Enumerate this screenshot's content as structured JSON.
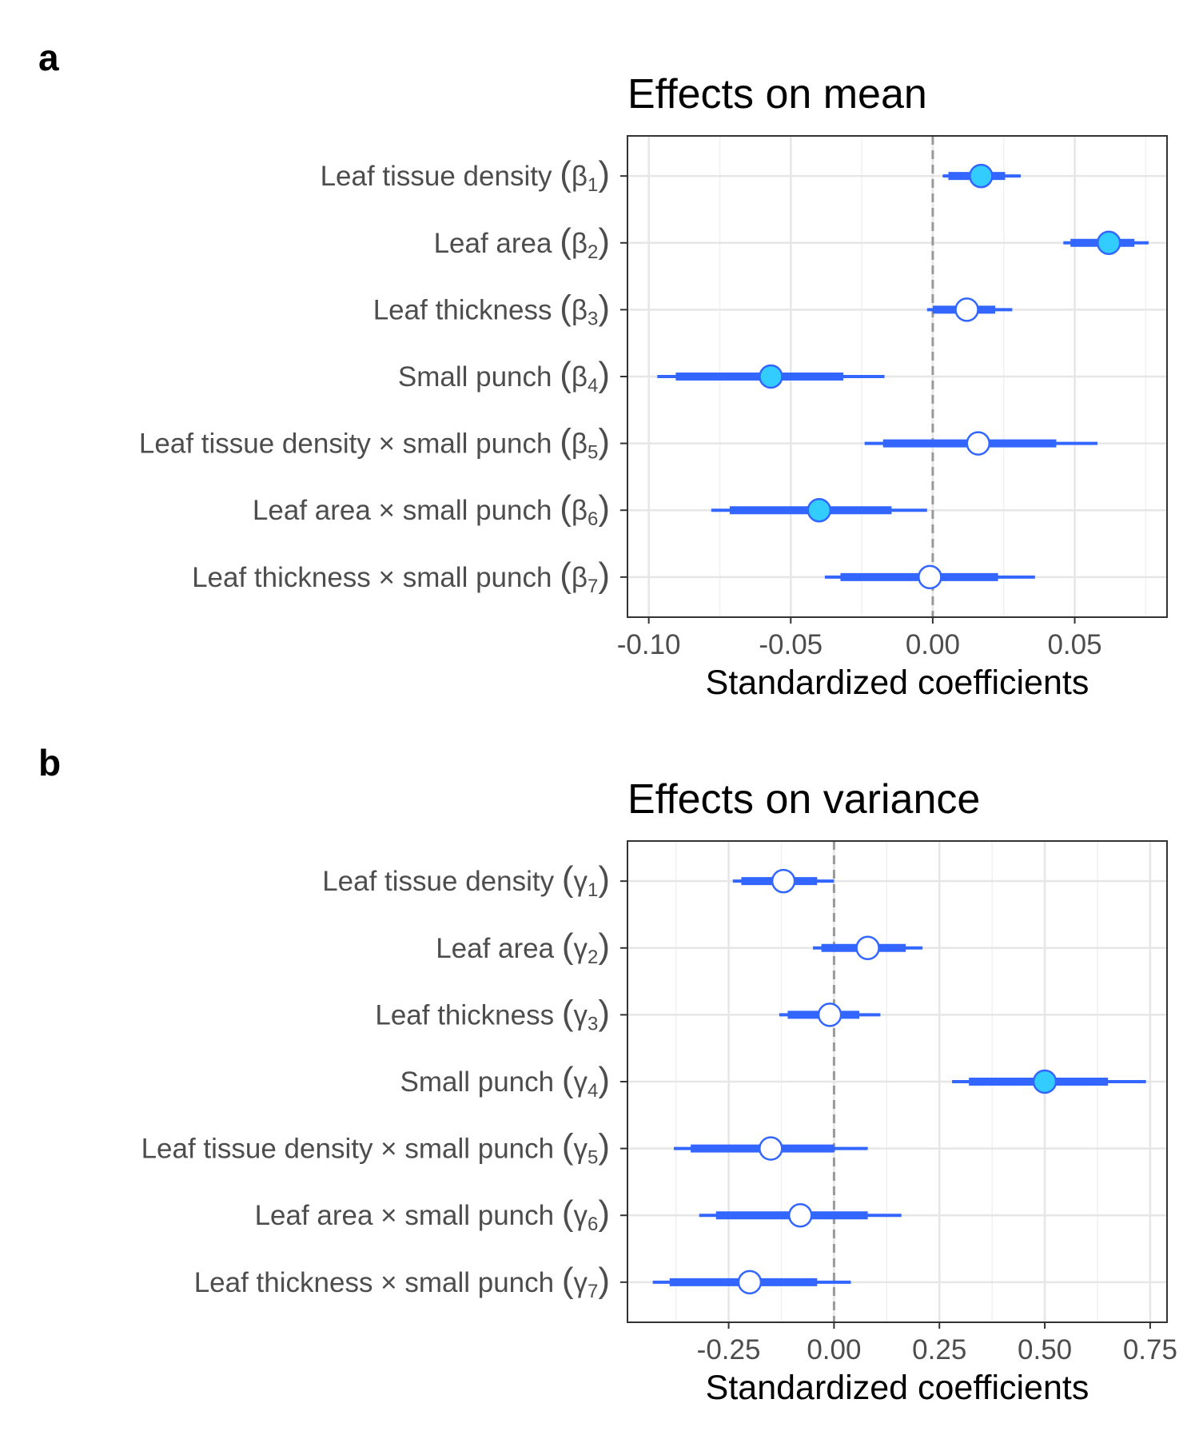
{
  "chart_data": [
    {
      "type": "scatter",
      "panel_letter": "a",
      "title": "Effects on mean",
      "xlabel": "Standardized coefficients",
      "ylabel": "",
      "xlim": [
        -0.1075,
        0.0825
      ],
      "xticks": [
        "-0.10",
        "-0.05",
        "0.00",
        "0.05"
      ],
      "xtick_values": [
        -0.1,
        -0.05,
        0.0,
        0.05
      ],
      "reference_line": 0,
      "grid": true,
      "colors": {
        "interval": "#3366ff",
        "significant_point": "#33ccff",
        "nonsignificant_point": "#ffffff",
        "reference_line": "#999999"
      },
      "rows": [
        {
          "label": "Leaf tissue density",
          "symbol": "β",
          "sub": "1",
          "estimate": 0.017,
          "inner": [
            0.0055,
            0.0255
          ],
          "outer": [
            0.0035,
            0.031
          ],
          "significant": true
        },
        {
          "label": "Leaf area",
          "symbol": "β",
          "sub": "2",
          "estimate": 0.062,
          "inner": [
            0.0485,
            0.071
          ],
          "outer": [
            0.046,
            0.076
          ],
          "significant": true
        },
        {
          "label": "Leaf thickness",
          "symbol": "β",
          "sub": "3",
          "estimate": 0.012,
          "inner": [
            0.0,
            0.022
          ],
          "outer": [
            -0.002,
            0.028
          ],
          "significant": false
        },
        {
          "label": "Small punch",
          "symbol": "β",
          "sub": "4",
          "estimate": -0.057,
          "inner": [
            -0.0905,
            -0.0315
          ],
          "outer": [
            -0.097,
            -0.017
          ],
          "significant": true
        },
        {
          "label": "Leaf tissue density × small punch",
          "symbol": "β",
          "sub": "5",
          "estimate": 0.016,
          "inner": [
            -0.0175,
            0.0435
          ],
          "outer": [
            -0.024,
            0.058
          ],
          "significant": false
        },
        {
          "label": "Leaf area × small punch",
          "symbol": "β",
          "sub": "6",
          "estimate": -0.04,
          "inner": [
            -0.0715,
            -0.0145
          ],
          "outer": [
            -0.078,
            -0.002
          ],
          "significant": true
        },
        {
          "label": "Leaf thickness × small punch",
          "symbol": "β",
          "sub": "7",
          "estimate": -0.001,
          "inner": [
            -0.0325,
            0.023
          ],
          "outer": [
            -0.038,
            0.036
          ],
          "significant": false
        }
      ]
    },
    {
      "type": "scatter",
      "panel_letter": "b",
      "title": "Effects on variance",
      "xlabel": "Standardized coefficients",
      "ylabel": "",
      "xlim": [
        -0.49,
        0.79
      ],
      "xticks": [
        "-0.25",
        "0.00",
        "0.25",
        "0.50",
        "0.75"
      ],
      "xtick_values": [
        -0.25,
        0.0,
        0.25,
        0.5,
        0.75
      ],
      "reference_line": 0,
      "grid": true,
      "colors": {
        "interval": "#3366ff",
        "significant_point": "#33ccff",
        "nonsignificant_point": "#ffffff",
        "reference_line": "#999999"
      },
      "rows": [
        {
          "label": "Leaf tissue density",
          "symbol": "γ",
          "sub": "1",
          "estimate": -0.12,
          "inner": [
            -0.22,
            -0.04
          ],
          "outer": [
            -0.24,
            0.0
          ],
          "significant": false
        },
        {
          "label": "Leaf area",
          "symbol": "γ",
          "sub": "2",
          "estimate": 0.08,
          "inner": [
            -0.03,
            0.17
          ],
          "outer": [
            -0.05,
            0.21
          ],
          "significant": false
        },
        {
          "label": "Leaf thickness",
          "symbol": "γ",
          "sub": "3",
          "estimate": -0.01,
          "inner": [
            -0.11,
            0.06
          ],
          "outer": [
            -0.13,
            0.11
          ],
          "significant": false
        },
        {
          "label": "Small punch",
          "symbol": "γ",
          "sub": "4",
          "estimate": 0.5,
          "inner": [
            0.32,
            0.65
          ],
          "outer": [
            0.28,
            0.74
          ],
          "significant": true
        },
        {
          "label": "Leaf tissue density × small punch",
          "symbol": "γ",
          "sub": "5",
          "estimate": -0.15,
          "inner": [
            -0.34,
            0.0
          ],
          "outer": [
            -0.38,
            0.08
          ],
          "significant": false
        },
        {
          "label": "Leaf area × small punch",
          "symbol": "γ",
          "sub": "6",
          "estimate": -0.08,
          "inner": [
            -0.28,
            0.08
          ],
          "outer": [
            -0.32,
            0.16
          ],
          "significant": false
        },
        {
          "label": "Leaf thickness × small punch",
          "symbol": "γ",
          "sub": "7",
          "estimate": -0.2,
          "inner": [
            -0.39,
            -0.04
          ],
          "outer": [
            -0.43,
            0.04
          ],
          "significant": false
        }
      ]
    }
  ]
}
